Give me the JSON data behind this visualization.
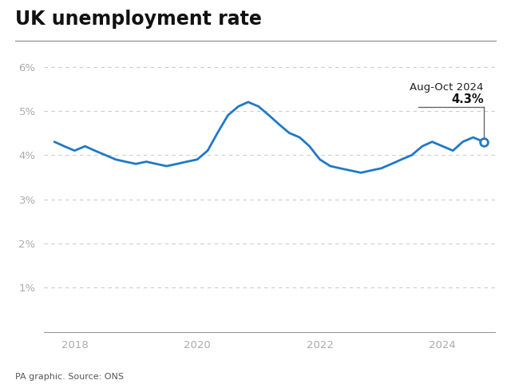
{
  "title": "UK unemployment rate",
  "source": "PA graphic. Source: ONS",
  "annotation_label": "Aug-Oct 2024",
  "annotation_value": "4.3%",
  "line_color": "#2079c7",
  "background_color": "#ffffff",
  "ylim": [
    0,
    6.5
  ],
  "yticks": [
    1,
    2,
    3,
    4,
    5,
    6
  ],
  "xlim_start": 2017.5,
  "xlim_end": 2024.85,
  "xticks": [
    2018,
    2020,
    2022,
    2024
  ],
  "dates": [
    2017.67,
    2017.83,
    2018.0,
    2018.17,
    2018.33,
    2018.5,
    2018.67,
    2018.83,
    2019.0,
    2019.17,
    2019.33,
    2019.5,
    2019.67,
    2019.83,
    2020.0,
    2020.17,
    2020.33,
    2020.5,
    2020.67,
    2020.83,
    2021.0,
    2021.17,
    2021.33,
    2021.5,
    2021.67,
    2021.83,
    2022.0,
    2022.17,
    2022.33,
    2022.5,
    2022.67,
    2022.83,
    2023.0,
    2023.17,
    2023.33,
    2023.5,
    2023.67,
    2023.83,
    2024.0,
    2024.17,
    2024.33,
    2024.5,
    2024.67
  ],
  "values": [
    4.3,
    4.2,
    4.1,
    4.2,
    4.1,
    4.0,
    3.9,
    3.85,
    3.8,
    3.85,
    3.8,
    3.75,
    3.8,
    3.85,
    3.9,
    4.1,
    4.5,
    4.9,
    5.1,
    5.2,
    5.1,
    4.9,
    4.7,
    4.5,
    4.4,
    4.2,
    3.9,
    3.75,
    3.7,
    3.65,
    3.6,
    3.65,
    3.7,
    3.8,
    3.9,
    4.0,
    4.2,
    4.3,
    4.2,
    4.1,
    4.3,
    4.4,
    4.3
  ],
  "last_point_x": 2024.67,
  "last_point_y": 4.3,
  "ann_hline_x_start": 2023.6,
  "ann_hline_x_end": 2024.67,
  "ann_hline_y": 5.08,
  "ann_vline_y_bottom": 4.38,
  "tick_label_color": "#aaaaaa",
  "grid_color": "#cccccc",
  "spine_color": "#999999",
  "ann_line_color": "#666666"
}
